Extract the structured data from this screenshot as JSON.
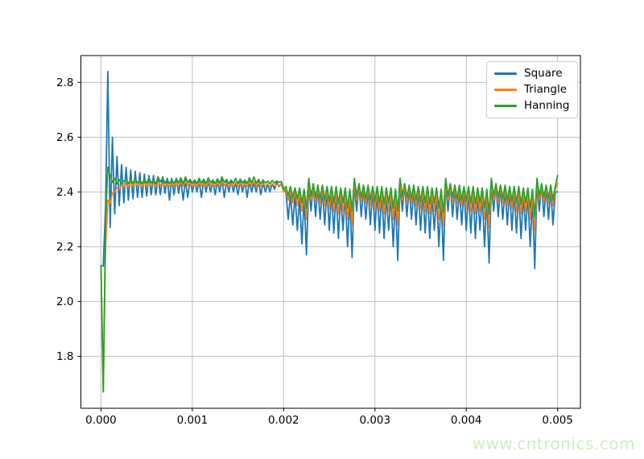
{
  "chart_data": {
    "type": "line",
    "title": "",
    "xlabel": "",
    "ylabel": "",
    "grid": true,
    "legend_position": "upper right",
    "xlim": [
      -0.00022,
      0.00525
    ],
    "ylim": [
      1.61,
      2.898
    ],
    "x_ticks": {
      "values": [
        0.0,
        0.001,
        0.002,
        0.003,
        0.004,
        0.005
      ],
      "labels": [
        "0.000",
        "0.001",
        "0.002",
        "0.003",
        "0.004",
        "0.005"
      ]
    },
    "y_ticks": {
      "values": [
        1.8,
        2.0,
        2.2,
        2.4,
        2.6,
        2.8
      ],
      "labels": [
        "1.8",
        "2.0",
        "2.2",
        "2.4",
        "2.6",
        "2.8"
      ]
    },
    "x_start": 0.0,
    "x_step": 2.5e-05,
    "x_unit": "seconds",
    "series": [
      {
        "name": "Square",
        "color": "#1f77b4",
        "y": [
          2.13,
          2.13,
          2.35,
          2.84,
          2.27,
          2.6,
          2.32,
          2.53,
          2.35,
          2.5,
          2.36,
          2.49,
          2.37,
          2.48,
          2.375,
          2.475,
          2.38,
          2.47,
          2.38,
          2.465,
          2.385,
          2.46,
          2.39,
          2.46,
          2.39,
          2.455,
          2.39,
          2.455,
          2.395,
          2.45,
          2.37,
          2.45,
          2.39,
          2.45,
          2.395,
          2.445,
          2.37,
          2.445,
          2.38,
          2.445,
          2.4,
          2.44,
          2.4,
          2.44,
          2.38,
          2.445,
          2.4,
          2.44,
          2.4,
          2.44,
          2.39,
          2.44,
          2.4,
          2.445,
          2.38,
          2.44,
          2.4,
          2.44,
          2.4,
          2.435,
          2.39,
          2.44,
          2.4,
          2.44,
          2.38,
          2.44,
          2.4,
          2.435,
          2.4,
          2.44,
          2.39,
          2.435,
          2.4,
          2.43,
          2.4,
          2.43,
          2.41,
          2.435,
          2.42,
          2.43,
          2.41,
          2.4,
          2.3,
          2.39,
          2.28,
          2.39,
          2.26,
          2.38,
          2.21,
          2.38,
          2.17,
          2.43,
          2.33,
          2.43,
          2.31,
          2.42,
          2.3,
          2.41,
          2.28,
          2.41,
          2.26,
          2.4,
          2.25,
          2.4,
          2.23,
          2.39,
          2.26,
          2.39,
          2.2,
          2.38,
          2.16,
          2.43,
          2.33,
          2.43,
          2.31,
          2.42,
          2.3,
          2.41,
          2.28,
          2.41,
          2.26,
          2.4,
          2.25,
          2.4,
          2.23,
          2.39,
          2.26,
          2.39,
          2.2,
          2.38,
          2.15,
          2.43,
          2.33,
          2.43,
          2.31,
          2.42,
          2.3,
          2.41,
          2.28,
          2.41,
          2.26,
          2.4,
          2.25,
          2.4,
          2.23,
          2.39,
          2.26,
          2.39,
          2.2,
          2.38,
          2.15,
          2.43,
          2.33,
          2.43,
          2.31,
          2.42,
          2.3,
          2.41,
          2.28,
          2.41,
          2.26,
          2.4,
          2.25,
          2.4,
          2.23,
          2.39,
          2.26,
          2.39,
          2.2,
          2.38,
          2.14,
          2.43,
          2.33,
          2.43,
          2.31,
          2.42,
          2.3,
          2.41,
          2.28,
          2.41,
          2.26,
          2.4,
          2.25,
          2.4,
          2.23,
          2.39,
          2.26,
          2.39,
          2.2,
          2.38,
          2.12,
          2.43,
          2.33,
          2.43,
          2.31,
          2.42,
          2.3,
          2.41,
          2.28,
          2.4,
          2.4
        ]
      },
      {
        "name": "Triangle",
        "color": "#ff7f0e",
        "y": [
          2.13,
          1.67,
          2.2,
          2.37,
          2.36,
          2.395,
          2.4,
          2.415,
          2.41,
          2.425,
          2.418,
          2.43,
          2.42,
          2.432,
          2.421,
          2.434,
          2.422,
          2.43,
          2.42,
          2.432,
          2.422,
          2.434,
          2.423,
          2.43,
          2.42,
          2.436,
          2.424,
          2.432,
          2.421,
          2.43,
          2.42,
          2.432,
          2.422,
          2.434,
          2.423,
          2.436,
          2.421,
          2.438,
          2.424,
          2.432,
          2.421,
          2.43,
          2.42,
          2.434,
          2.422,
          2.432,
          2.42,
          2.436,
          2.423,
          2.43,
          2.42,
          2.434,
          2.422,
          2.438,
          2.424,
          2.432,
          2.42,
          2.43,
          2.422,
          2.434,
          2.42,
          2.432,
          2.422,
          2.43,
          2.42,
          2.436,
          2.423,
          2.438,
          2.421,
          2.434,
          2.42,
          2.43,
          2.422,
          2.428,
          2.42,
          2.43,
          2.422,
          2.428,
          2.424,
          2.426,
          2.4,
          2.41,
          2.37,
          2.41,
          2.36,
          2.405,
          2.35,
          2.4,
          2.33,
          2.4,
          2.3,
          2.43,
          2.37,
          2.42,
          2.365,
          2.415,
          2.36,
          2.41,
          2.35,
          2.41,
          2.34,
          2.405,
          2.33,
          2.4,
          2.32,
          2.4,
          2.33,
          2.395,
          2.3,
          2.39,
          2.28,
          2.43,
          2.37,
          2.42,
          2.365,
          2.415,
          2.36,
          2.41,
          2.35,
          2.41,
          2.34,
          2.405,
          2.33,
          2.4,
          2.32,
          2.4,
          2.33,
          2.395,
          2.3,
          2.39,
          2.28,
          2.43,
          2.37,
          2.42,
          2.365,
          2.415,
          2.36,
          2.41,
          2.35,
          2.41,
          2.34,
          2.405,
          2.33,
          2.4,
          2.32,
          2.4,
          2.33,
          2.395,
          2.3,
          2.39,
          2.275,
          2.43,
          2.37,
          2.42,
          2.365,
          2.415,
          2.36,
          2.41,
          2.35,
          2.41,
          2.34,
          2.405,
          2.33,
          2.4,
          2.32,
          2.4,
          2.33,
          2.395,
          2.3,
          2.39,
          2.27,
          2.43,
          2.37,
          2.42,
          2.365,
          2.415,
          2.36,
          2.41,
          2.35,
          2.41,
          2.34,
          2.405,
          2.33,
          2.4,
          2.32,
          2.4,
          2.33,
          2.395,
          2.3,
          2.39,
          2.26,
          2.43,
          2.37,
          2.42,
          2.365,
          2.415,
          2.36,
          2.41,
          2.35,
          2.41,
          2.43
        ]
      },
      {
        "name": "Hanning",
        "color": "#2ca02c",
        "y": [
          2.13,
          1.67,
          2.3,
          2.49,
          2.46,
          2.435,
          2.45,
          2.43,
          2.445,
          2.432,
          2.44,
          2.443,
          2.43,
          2.446,
          2.431,
          2.448,
          2.433,
          2.444,
          2.43,
          2.446,
          2.432,
          2.45,
          2.433,
          2.444,
          2.43,
          2.455,
          2.436,
          2.452,
          2.432,
          2.446,
          2.43,
          2.444,
          2.431,
          2.448,
          2.433,
          2.452,
          2.43,
          2.455,
          2.434,
          2.446,
          2.431,
          2.444,
          2.43,
          2.45,
          2.432,
          2.447,
          2.43,
          2.452,
          2.433,
          2.444,
          2.43,
          2.448,
          2.432,
          2.455,
          2.434,
          2.446,
          2.43,
          2.444,
          2.432,
          2.45,
          2.43,
          2.447,
          2.432,
          2.444,
          2.43,
          2.452,
          2.433,
          2.455,
          2.431,
          2.446,
          2.43,
          2.444,
          2.432,
          2.44,
          2.43,
          2.442,
          2.432,
          2.44,
          2.435,
          2.438,
          2.41,
          2.42,
          2.385,
          2.42,
          2.38,
          2.415,
          2.375,
          2.415,
          2.36,
          2.41,
          2.34,
          2.45,
          2.385,
          2.43,
          2.38,
          2.425,
          2.375,
          2.425,
          2.37,
          2.42,
          2.365,
          2.42,
          2.36,
          2.42,
          2.355,
          2.415,
          2.36,
          2.415,
          2.34,
          2.41,
          2.33,
          2.45,
          2.385,
          2.43,
          2.38,
          2.425,
          2.375,
          2.425,
          2.37,
          2.42,
          2.365,
          2.42,
          2.36,
          2.42,
          2.355,
          2.415,
          2.36,
          2.415,
          2.34,
          2.41,
          2.33,
          2.45,
          2.385,
          2.43,
          2.38,
          2.425,
          2.375,
          2.425,
          2.37,
          2.42,
          2.365,
          2.42,
          2.36,
          2.42,
          2.355,
          2.415,
          2.36,
          2.415,
          2.34,
          2.41,
          2.325,
          2.45,
          2.385,
          2.43,
          2.38,
          2.425,
          2.375,
          2.425,
          2.37,
          2.42,
          2.365,
          2.42,
          2.36,
          2.42,
          2.355,
          2.415,
          2.36,
          2.415,
          2.34,
          2.41,
          2.32,
          2.45,
          2.385,
          2.43,
          2.38,
          2.425,
          2.375,
          2.425,
          2.37,
          2.42,
          2.365,
          2.42,
          2.36,
          2.42,
          2.355,
          2.415,
          2.36,
          2.415,
          2.34,
          2.41,
          2.31,
          2.45,
          2.385,
          2.43,
          2.38,
          2.425,
          2.375,
          2.425,
          2.37,
          2.42,
          2.46
        ]
      }
    ],
    "style": {
      "grid_color": "#c0c0c0",
      "spine_color": "#000000",
      "tick_label_color": "#000000",
      "line_width": 1.8
    }
  },
  "watermark": {
    "text": "www.cntronics.com",
    "color": "#cdeec3"
  }
}
